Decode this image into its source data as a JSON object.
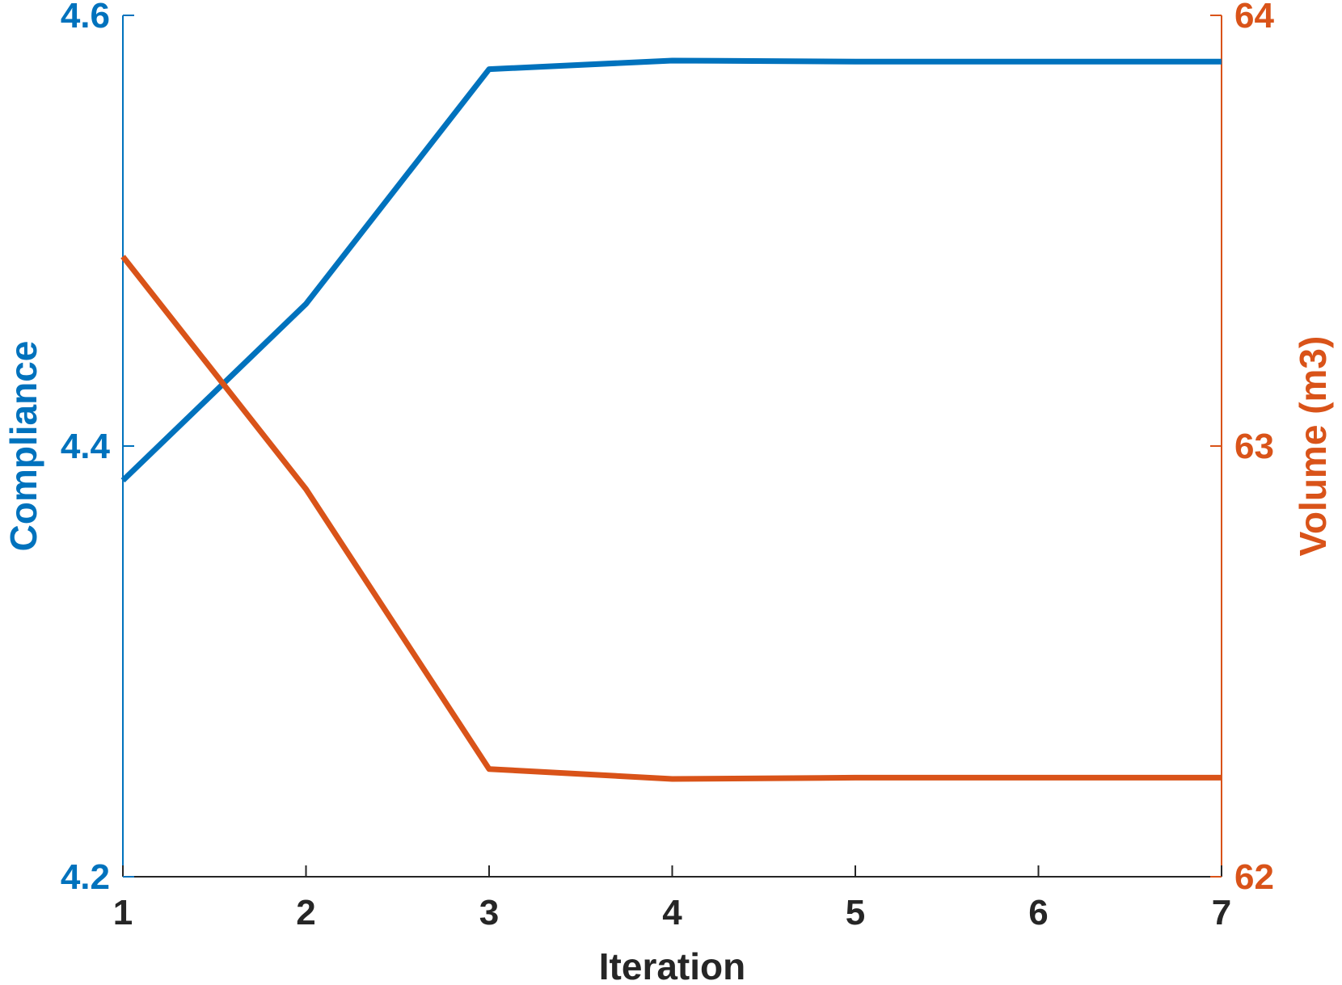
{
  "chart_data": {
    "type": "line",
    "title": "",
    "xlabel": "Iteration",
    "x": [
      1,
      2,
      3,
      4,
      5,
      6,
      7
    ],
    "xlim": [
      1,
      7
    ],
    "x_ticks": [
      "1",
      "2",
      "3",
      "4",
      "5",
      "6",
      "7"
    ],
    "grid": false,
    "legend": "none",
    "y_left": {
      "label": "Compliance",
      "lim": [
        4.2,
        4.6
      ],
      "ticks": [
        "4.2",
        "4.4",
        "4.6"
      ],
      "color": "#0072BD"
    },
    "y_right": {
      "label": "Volume (m3)",
      "lim": [
        62,
        64
      ],
      "ticks": [
        "62",
        "63",
        "64"
      ],
      "color": "#D95319"
    },
    "series": [
      {
        "axis": "left",
        "color": "#0072BD",
        "values": [
          4.384,
          4.466,
          4.575,
          4.579,
          4.5785,
          4.5785,
          4.5785
        ]
      },
      {
        "axis": "right",
        "color": "#D95319",
        "values": [
          63.44,
          62.9,
          62.25,
          62.227,
          62.23,
          62.23,
          62.23
        ]
      }
    ]
  }
}
